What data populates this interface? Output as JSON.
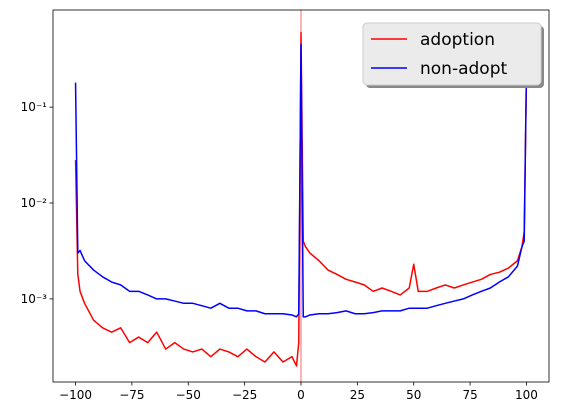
{
  "chart_data": {
    "type": "line",
    "x": [
      -100,
      -99,
      -98,
      -96,
      -92,
      -88,
      -84,
      -80,
      -76,
      -72,
      -68,
      -64,
      -60,
      -56,
      -52,
      -48,
      -44,
      -40,
      -36,
      -32,
      -28,
      -24,
      -20,
      -16,
      -12,
      -8,
      -4,
      -2,
      -1,
      0,
      1,
      2,
      4,
      8,
      12,
      16,
      20,
      24,
      28,
      32,
      36,
      40,
      44,
      48,
      50,
      52,
      56,
      60,
      64,
      68,
      72,
      76,
      80,
      84,
      88,
      92,
      96,
      98,
      99,
      100
    ],
    "series": [
      {
        "name": "adoption",
        "color": "#ff0000",
        "values": [
          0.028,
          0.0018,
          0.0012,
          0.0009,
          0.0006,
          0.0005,
          0.00045,
          0.0005,
          0.00035,
          0.0004,
          0.00035,
          0.00045,
          0.0003,
          0.00035,
          0.0003,
          0.00028,
          0.0003,
          0.00025,
          0.0003,
          0.00028,
          0.00025,
          0.0003,
          0.00025,
          0.00022,
          0.00028,
          0.00022,
          0.00025,
          0.0002,
          0.00035,
          0.6,
          0.004,
          0.0035,
          0.003,
          0.0025,
          0.002,
          0.0018,
          0.0016,
          0.0015,
          0.0014,
          0.0012,
          0.0013,
          0.0012,
          0.0011,
          0.0013,
          0.0023,
          0.0012,
          0.0012,
          0.0013,
          0.0014,
          0.0013,
          0.0014,
          0.0015,
          0.0016,
          0.0018,
          0.0019,
          0.0021,
          0.0025,
          0.0035,
          0.005,
          0.2
        ]
      },
      {
        "name": "non-adopt",
        "color": "#0000ff",
        "values": [
          0.18,
          0.003,
          0.0032,
          0.0025,
          0.002,
          0.0017,
          0.0015,
          0.0014,
          0.0012,
          0.0012,
          0.0011,
          0.001,
          0.001,
          0.00095,
          0.0009,
          0.0009,
          0.00085,
          0.0008,
          0.0009,
          0.0008,
          0.0008,
          0.00075,
          0.00075,
          0.0007,
          0.0007,
          0.0007,
          0.00068,
          0.00065,
          0.0007,
          0.45,
          0.00065,
          0.00065,
          0.00068,
          0.0007,
          0.0007,
          0.00072,
          0.00075,
          0.0007,
          0.0007,
          0.00072,
          0.00075,
          0.00075,
          0.00075,
          0.0008,
          0.0008,
          0.0008,
          0.0008,
          0.00085,
          0.0009,
          0.00095,
          0.001,
          0.0011,
          0.0012,
          0.0013,
          0.0015,
          0.0017,
          0.0022,
          0.0035,
          0.004,
          0.25
        ]
      }
    ],
    "xlim": [
      -110,
      110
    ],
    "xticks": [
      {
        "value": -100,
        "label": "−100"
      },
      {
        "value": -75,
        "label": "−75"
      },
      {
        "value": -50,
        "label": "−50"
      },
      {
        "value": -25,
        "label": "−25"
      },
      0,
      25,
      50,
      75,
      100
    ],
    "ylim": [
      0.000136,
      1.03
    ],
    "yscale": "log",
    "yticks": [
      {
        "value": 0.001,
        "label": "10⁻³"
      },
      {
        "value": 0.01,
        "label": "10⁻²"
      },
      {
        "value": 0.1,
        "label": "10⁻¹"
      }
    ],
    "vline": {
      "x": 0,
      "color": "#ff0000"
    },
    "legend": "upper right"
  }
}
